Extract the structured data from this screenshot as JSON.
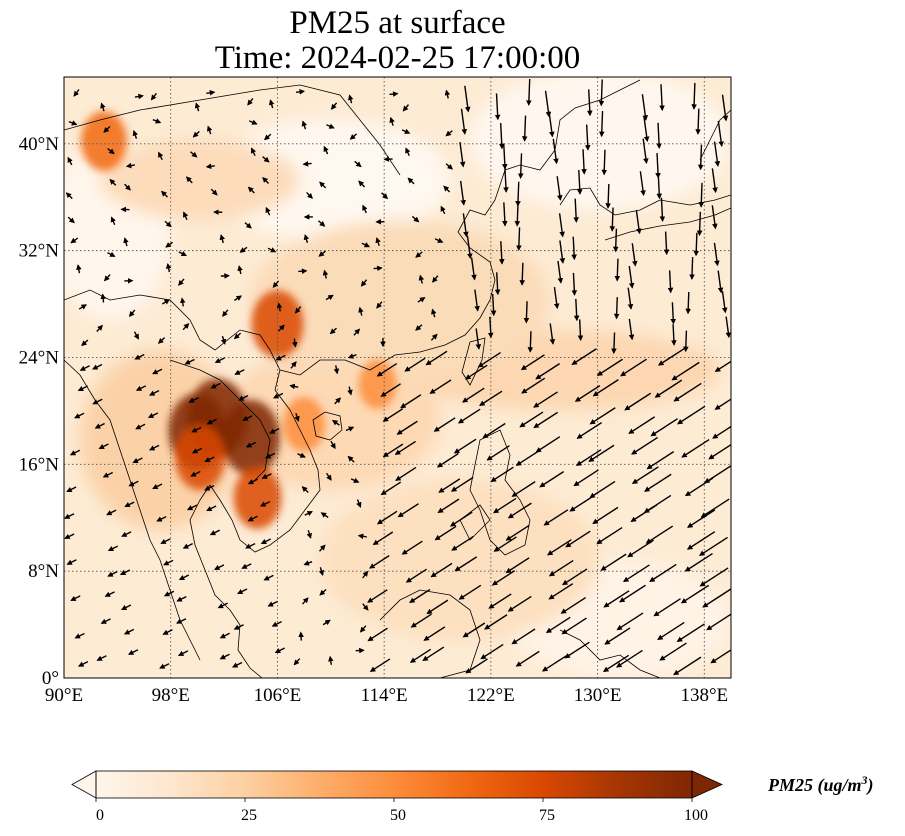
{
  "title_line1": "PM25 at surface",
  "title_line2": "Time: 2024-02-25 17:00:00",
  "map": {
    "lon_range": [
      90,
      140
    ],
    "lat_range": [
      0,
      45
    ],
    "lon_ticks": [
      "90°E",
      "98°E",
      "106°E",
      "114°E",
      "122°E",
      "130°E",
      "138°E"
    ],
    "lat_ticks": [
      "0°",
      "8°N",
      "16°N",
      "24°N",
      "32°N",
      "40°N"
    ],
    "pollution_hotspots": [
      {
        "lon": 101.5,
        "lat": 19.5,
        "pm25": 100
      },
      {
        "lon": 100.0,
        "lat": 18.5,
        "pm25": 95
      },
      {
        "lon": 104.0,
        "lat": 18.0,
        "pm25": 95
      },
      {
        "lon": 106.0,
        "lat": 26.5,
        "pm25": 80
      },
      {
        "lon": 100.2,
        "lat": 16.5,
        "pm25": 75
      },
      {
        "lon": 104.5,
        "lat": 13.5,
        "pm25": 70
      },
      {
        "lon": 93.0,
        "lat": 40.2,
        "pm25": 65
      },
      {
        "lon": 108.0,
        "lat": 19.0,
        "pm25": 55
      },
      {
        "lon": 113.5,
        "lat": 22.0,
        "pm25": 45
      }
    ],
    "wind_pattern": "northeasterly monsoon over South China Sea; northerly flow east of Korea and Japan"
  },
  "colorbar": {
    "colormap": [
      "#fff5eb",
      "#fee6ce",
      "#fdd0a2",
      "#fdae6b",
      "#fd8d3c",
      "#f16913",
      "#d94801",
      "#a63603",
      "#7f2704"
    ],
    "ticks": [
      "0",
      "25",
      "50",
      "75",
      "100"
    ],
    "range": [
      0,
      100
    ],
    "label_text": "PM25 (ug/m",
    "label_sup": "3",
    "label_close": ")"
  }
}
